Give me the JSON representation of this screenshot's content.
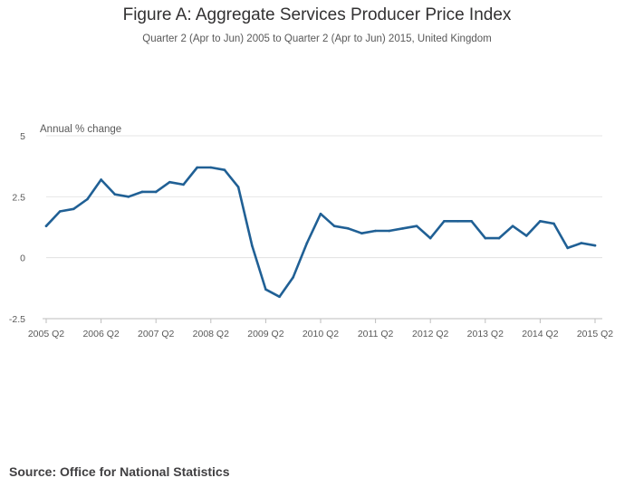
{
  "chart_data": {
    "type": "line",
    "title": "Figure A: Aggregate Services Producer Price Index",
    "subtitle": "Quarter 2 (Apr to Jun) 2005 to Quarter 2 (Apr to Jun) 2015, United Kingdom",
    "ylabel": "Annual % change",
    "xlabel": "",
    "ylim": [
      -2.5,
      5
    ],
    "yticks": [
      -2.5,
      0,
      2.5,
      5
    ],
    "ytick_labels": [
      "-2.5",
      "0",
      "2.5",
      "5"
    ],
    "xtick_labels": [
      "2005 Q2",
      "2006 Q2",
      "2007 Q2",
      "2008 Q2",
      "2009 Q2",
      "2010 Q2",
      "2011 Q2",
      "2012 Q2",
      "2013 Q2",
      "2014 Q2",
      "2015 Q2"
    ],
    "grid": true,
    "series": [
      {
        "name": "Annual % change",
        "color": "#206095",
        "values": [
          1.3,
          1.9,
          2.0,
          2.4,
          3.2,
          2.6,
          2.5,
          2.7,
          2.7,
          3.1,
          3.0,
          3.7,
          3.7,
          3.6,
          2.9,
          0.5,
          -1.3,
          -1.6,
          -0.8,
          0.6,
          1.8,
          1.3,
          1.2,
          1.0,
          1.1,
          1.1,
          1.2,
          1.3,
          0.8,
          1.5,
          1.5,
          1.5,
          0.8,
          0.8,
          1.3,
          0.9,
          1.5,
          1.4,
          0.4,
          0.6,
          0.5
        ]
      }
    ]
  },
  "source": "Source: Office for National Statistics",
  "colors": {
    "line": "#206095",
    "grid": "#e6e6e6",
    "axis": "#bebebe"
  }
}
